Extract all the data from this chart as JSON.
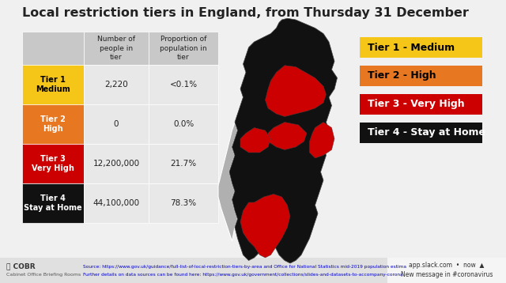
{
  "title": "Local restriction tiers in England, from Thursday 31 December",
  "title_fontsize": 11.5,
  "background_color": "#f0f0f0",
  "tier_colors": [
    "#F5C518",
    "#E87722",
    "#CC0000",
    "#111111"
  ],
  "tier_text_colors": [
    "#000000",
    "#ffffff",
    "#ffffff",
    "#ffffff"
  ],
  "header_bg": "#c8c8c8",
  "row_bg": "#e8e8e8",
  "table_rows": [
    [
      "Tier 1\nMedium",
      "2,220",
      "<0.1%"
    ],
    [
      "Tier 2\nHigh",
      "0",
      "0.0%"
    ],
    [
      "Tier 3\nVery High",
      "12,200,000",
      "21.7%"
    ],
    [
      "Tier 4\nStay at Home",
      "44,100,000",
      "78.3%"
    ]
  ],
  "legend_labels": [
    "Tier 1 - Medium",
    "Tier 2 - High",
    "Tier 3 - Very High",
    "Tier 4 - Stay at Home"
  ],
  "legend_colors": [
    "#F5C518",
    "#E87722",
    "#CC0000",
    "#111111"
  ],
  "legend_text_colors": [
    "#000000",
    "#000000",
    "#ffffff",
    "#ffffff"
  ]
}
